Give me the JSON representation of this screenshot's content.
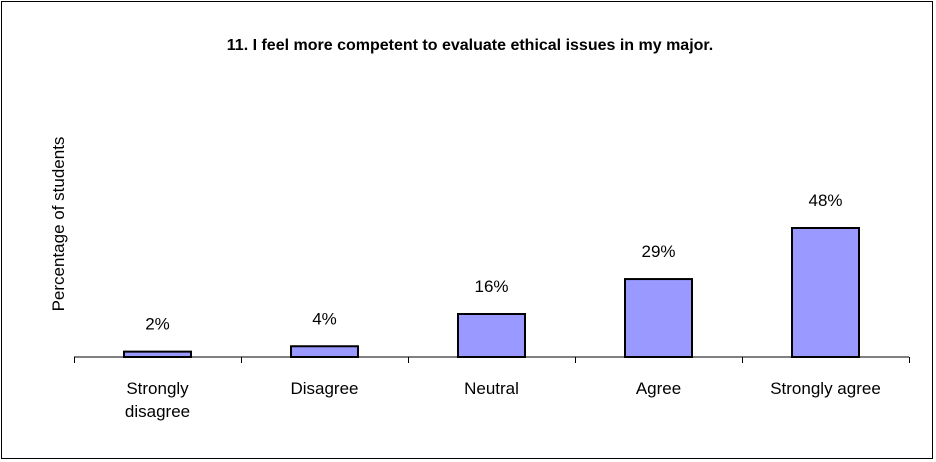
{
  "chart_data": {
    "type": "bar",
    "title": "11. I feel more competent to evaluate ethical issues in my major.",
    "ylabel": "Percentage of students",
    "xlabel": "",
    "categories": [
      [
        "Strongly",
        "disagree"
      ],
      [
        "Disagree"
      ],
      [
        "Neutral"
      ],
      [
        "Agree"
      ],
      [
        "Strongly agree"
      ]
    ],
    "values": [
      2,
      4,
      16,
      29,
      48
    ],
    "data_labels": [
      "2%",
      "4%",
      "16%",
      "29%",
      "48%"
    ],
    "ylim": [
      0,
      60
    ],
    "grid": false,
    "legend": "none",
    "bar_color": "#9999ff",
    "bar_edge_color": "#000000"
  }
}
